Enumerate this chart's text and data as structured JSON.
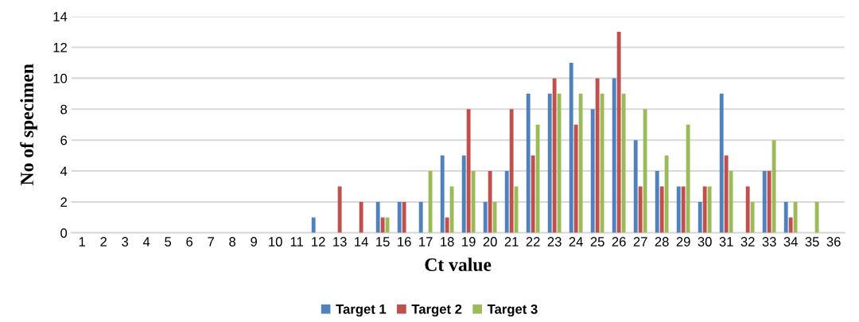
{
  "chart_data": {
    "type": "bar",
    "xlabel": "Ct value",
    "ylabel": "No of specimen",
    "categories": [
      "1",
      "2",
      "3",
      "4",
      "5",
      "6",
      "7",
      "8",
      "9",
      "10",
      "11",
      "12",
      "13",
      "14",
      "15",
      "16",
      "17",
      "18",
      "19",
      "20",
      "21",
      "22",
      "23",
      "24",
      "25",
      "26",
      "27",
      "28",
      "29",
      "30",
      "31",
      "32",
      "33",
      "34",
      "35",
      "36"
    ],
    "series": [
      {
        "name": "Target 1",
        "color": "#4f81bd",
        "values": [
          0,
          0,
          0,
          0,
          0,
          0,
          0,
          0,
          0,
          0,
          0,
          1,
          0,
          0,
          2,
          2,
          2,
          5,
          5,
          2,
          4,
          9,
          9,
          11,
          8,
          10,
          6,
          4,
          3,
          2,
          9,
          0,
          4,
          2,
          0,
          0
        ]
      },
      {
        "name": "Target 2",
        "color": "#c0504d",
        "values": [
          0,
          0,
          0,
          0,
          0,
          0,
          0,
          0,
          0,
          0,
          0,
          0,
          3,
          2,
          1,
          2,
          0,
          1,
          8,
          4,
          8,
          5,
          10,
          7,
          10,
          13,
          3,
          3,
          3,
          3,
          5,
          3,
          4,
          1,
          0,
          0
        ]
      },
      {
        "name": "Target 3",
        "color": "#9bbb59",
        "values": [
          0,
          0,
          0,
          0,
          0,
          0,
          0,
          0,
          0,
          0,
          0,
          0,
          0,
          0,
          1,
          0,
          4,
          3,
          4,
          2,
          3,
          7,
          9,
          9,
          9,
          9,
          8,
          5,
          7,
          3,
          4,
          2,
          6,
          2,
          2,
          0
        ]
      }
    ],
    "ylim": [
      0,
      14
    ],
    "yticks": [
      0,
      2,
      4,
      6,
      8,
      10,
      12,
      14
    ],
    "grid": "y",
    "legend": "bottom"
  }
}
